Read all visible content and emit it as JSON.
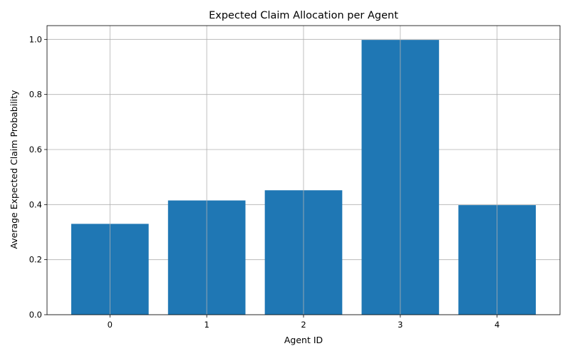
{
  "chart_data": {
    "type": "bar",
    "title": "Expected Claim Allocation per Agent",
    "xlabel": "Agent ID",
    "ylabel": "Average Expected Claim Probability",
    "categories": [
      "0",
      "1",
      "2",
      "3",
      "4"
    ],
    "values": [
      0.33,
      0.415,
      0.452,
      0.998,
      0.398
    ],
    "ylim": [
      0,
      1.05
    ],
    "yticks": [
      "0.0",
      "0.2",
      "0.4",
      "0.6",
      "0.8",
      "1.0"
    ],
    "grid": true,
    "colors": {
      "bar": "#1f77b4",
      "grid": "#b0b0b0",
      "axis": "#000000"
    }
  }
}
